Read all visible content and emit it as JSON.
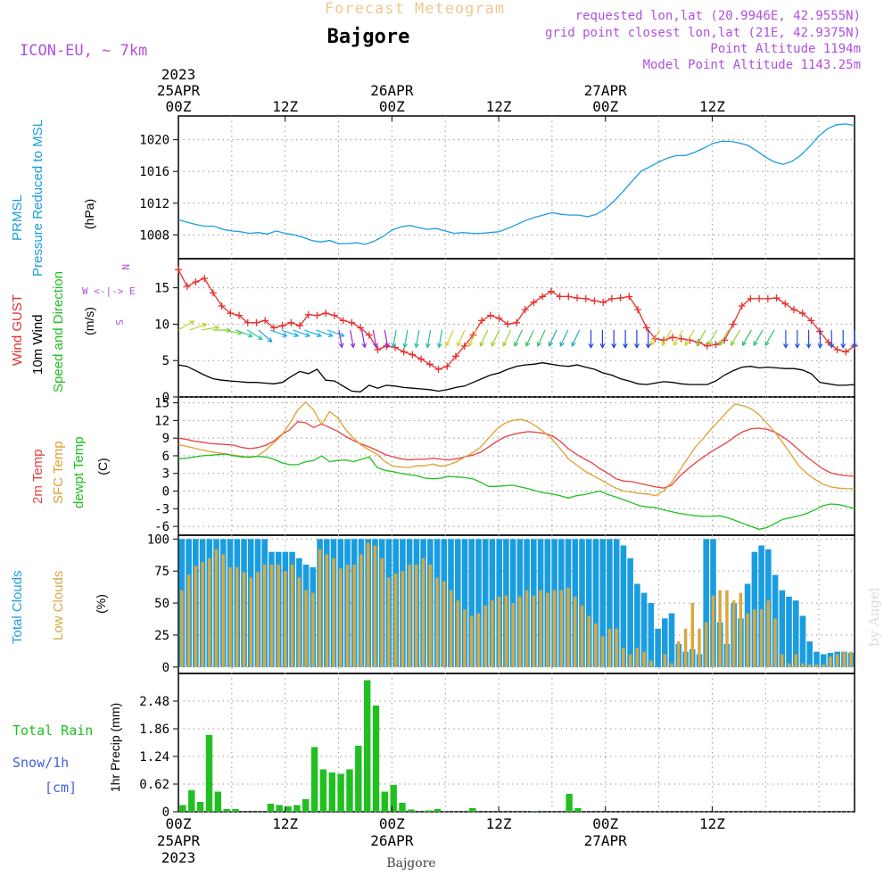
{
  "header": {
    "title": "Forecast Meteogram",
    "location": "Bajgore",
    "model": "ICON-EU, ~ 7km",
    "requested": "requested lon,lat (20.9946E, 42.9555N)",
    "grid_point": "grid point closest lon,lat (21E, 42.9375N)",
    "point_altitude": "Point Altitude 1194m",
    "model_altitude": "Model Point Altitude 1143.25m",
    "credit": "by Angel",
    "footer": "Bajgore"
  },
  "time_axis": {
    "hours_total": 76,
    "top_labels": [
      {
        "hour": 0,
        "lines": [
          "2023",
          "25APR",
          "00Z"
        ]
      },
      {
        "hour": 12,
        "lines": [
          "12Z"
        ]
      },
      {
        "hour": 24,
        "lines": [
          "26APR",
          "00Z"
        ]
      },
      {
        "hour": 36,
        "lines": [
          "12Z"
        ]
      },
      {
        "hour": 48,
        "lines": [
          "27APR",
          "00Z"
        ]
      },
      {
        "hour": 60,
        "lines": [
          "12Z"
        ]
      }
    ],
    "bottom_labels": [
      {
        "hour": 0,
        "lines": [
          "00Z",
          "25APR",
          "2023"
        ]
      },
      {
        "hour": 12,
        "lines": [
          "12Z"
        ]
      },
      {
        "hour": 24,
        "lines": [
          "00Z",
          "26APR"
        ]
      },
      {
        "hour": 36,
        "lines": [
          "12Z"
        ]
      },
      {
        "hour": 48,
        "lines": [
          "00Z",
          "27APR"
        ]
      },
      {
        "hour": 60,
        "lines": [
          "12Z"
        ]
      }
    ]
  },
  "chart_data": [
    {
      "type": "line",
      "panel": "pressure",
      "ylabel_lines": [
        "PRMSL",
        "Pressure Reduced to MSL"
      ],
      "unit": "(hPa)",
      "ylim": [
        1005,
        1023
      ],
      "yticks": [
        1008,
        1012,
        1016,
        1020
      ],
      "series": [
        {
          "name": "PRMSL",
          "color": "#1a9de0",
          "values": [
            1009.9,
            1009.6,
            1009.3,
            1009.1,
            1009.1,
            1008.7,
            1008.5,
            1008.4,
            1008.2,
            1008.3,
            1008.1,
            1008.5,
            1008.2,
            1008.0,
            1007.7,
            1007.3,
            1007.1,
            1007.3,
            1006.9,
            1006.9,
            1007.0,
            1006.8,
            1007.2,
            1007.8,
            1008.6,
            1009.0,
            1009.2,
            1008.9,
            1008.7,
            1008.8,
            1008.5,
            1008.2,
            1008.3,
            1008.2,
            1008.2,
            1008.3,
            1008.4,
            1008.8,
            1009.3,
            1009.8,
            1010.2,
            1010.5,
            1010.8,
            1010.6,
            1010.5,
            1010.5,
            1010.3,
            1010.6,
            1011.3,
            1012.3,
            1013.5,
            1014.8,
            1016.0,
            1016.6,
            1017.2,
            1017.7,
            1018.0,
            1018.0,
            1018.4,
            1018.9,
            1019.5,
            1019.8,
            1019.8,
            1019.6,
            1019.3,
            1018.6,
            1017.8,
            1017.2,
            1016.9,
            1017.3,
            1018.1,
            1019.2,
            1020.5,
            1021.4,
            1021.9,
            1022.0,
            1021.8
          ]
        }
      ]
    },
    {
      "type": "line",
      "panel": "wind",
      "ylabel_lines": [
        "Wind GUST",
        "10m Wind",
        "Speed and Direction"
      ],
      "unit": "(m/s)",
      "compass": [
        "N",
        "W <-|-> E",
        "S"
      ],
      "ylim": [
        0,
        19
      ],
      "yticks": [
        0,
        5,
        10,
        15
      ],
      "series": [
        {
          "name": "Wind GUST",
          "color": "#e83030",
          "marker": "+",
          "values": [
            17.5,
            15.2,
            15.8,
            16.3,
            14.3,
            12.5,
            11.5,
            11.2,
            10.2,
            10.2,
            10.5,
            9.5,
            9.8,
            10.2,
            9.8,
            11.3,
            11.2,
            11.5,
            11.2,
            10.5,
            10.2,
            9.5,
            8.5,
            6.5,
            7.0,
            6.8,
            6.2,
            5.8,
            5.2,
            4.5,
            3.8,
            4.2,
            5.6,
            7.0,
            8.5,
            10.5,
            11.2,
            10.8,
            10.0,
            10.2,
            12.0,
            13.0,
            13.8,
            14.5,
            13.8,
            13.8,
            13.6,
            13.5,
            13.2,
            13.0,
            13.5,
            13.6,
            13.8,
            12.0,
            9.5,
            8.0,
            7.8,
            8.2,
            8.0,
            7.8,
            7.5,
            7.0,
            7.2,
            7.8,
            10.0,
            12.5,
            13.5,
            13.5,
            13.5,
            13.6,
            12.8,
            12.0,
            11.5,
            10.5,
            9.0,
            7.5,
            6.5,
            6.2,
            7.0
          ]
        },
        {
          "name": "10m Wind",
          "color": "#000000",
          "values": [
            4.4,
            4.2,
            3.6,
            3.0,
            2.5,
            2.3,
            2.2,
            2.1,
            2.0,
            2.0,
            1.9,
            1.8,
            2.0,
            2.8,
            3.5,
            3.2,
            3.8,
            2.3,
            2.2,
            1.5,
            0.8,
            0.7,
            1.6,
            1.2,
            1.6,
            1.5,
            1.3,
            1.2,
            1.1,
            1.0,
            0.8,
            1.0,
            1.3,
            1.5,
            2.0,
            2.5,
            3.0,
            3.3,
            3.8,
            4.2,
            4.4,
            4.5,
            4.7,
            4.5,
            4.3,
            4.2,
            4.4,
            4.1,
            3.8,
            3.3,
            3.0,
            2.5,
            2.2,
            1.8,
            1.7,
            1.9,
            2.1,
            2.0,
            1.8,
            1.7,
            1.7,
            1.7,
            2.2,
            3.0,
            3.6,
            4.1,
            4.2,
            4.0,
            4.1,
            4.0,
            3.9,
            3.9,
            3.7,
            3.2,
            2.0,
            1.8,
            1.6,
            1.6,
            1.7
          ]
        }
      ]
    },
    {
      "type": "line",
      "panel": "temperature",
      "ylabel_lines": [
        "2m Temp",
        "SFC Temp",
        "dewpt Temp"
      ],
      "unit": "(C)",
      "ylim": [
        -7.5,
        16
      ],
      "yticks": [
        -6,
        -3,
        0,
        3,
        6,
        9,
        12,
        15
      ],
      "series": [
        {
          "name": "2m Temp",
          "color": "#e84040",
          "values": [
            9.0,
            8.8,
            8.5,
            8.3,
            8.1,
            8.0,
            7.9,
            7.8,
            7.4,
            7.2,
            7.4,
            7.8,
            8.5,
            9.6,
            10.4,
            11.8,
            11.6,
            10.8,
            11.4,
            10.8,
            10.2,
            9.3,
            8.6,
            8.0,
            7.5,
            6.9,
            6.2,
            5.8,
            5.5,
            5.3,
            5.4,
            5.4,
            5.6,
            5.4,
            5.3,
            5.5,
            5.8,
            6.1,
            6.6,
            7.5,
            8.4,
            9.2,
            9.6,
            9.9,
            10.1,
            10.0,
            9.8,
            9.4,
            8.5,
            7.2,
            6.3,
            5.5,
            4.8,
            3.8,
            3.0,
            2.1,
            1.7,
            1.6,
            1.3,
            1.0,
            0.7,
            0.5,
            1.0,
            2.5,
            3.7,
            4.8,
            5.8,
            6.7,
            7.5,
            8.3,
            9.3,
            10.1,
            10.6,
            10.7,
            10.5,
            10.0,
            9.2,
            8.2,
            7.0,
            5.8,
            4.8,
            3.8,
            3.1,
            2.8,
            2.6,
            2.5
          ]
        },
        {
          "name": "SFC Temp",
          "color": "#e0a030",
          "values": [
            7.9,
            7.6,
            7.3,
            7.0,
            6.7,
            6.5,
            6.3,
            6.1,
            5.9,
            5.7,
            6.0,
            7.0,
            8.2,
            9.5,
            11.5,
            13.8,
            15.1,
            13.8,
            11.3,
            13.5,
            12.5,
            10.5,
            9.0,
            7.8,
            7.0,
            6.2,
            5.0,
            4.2,
            4.1,
            4.0,
            4.3,
            4.3,
            4.6,
            4.2,
            4.5,
            5.0,
            5.8,
            6.5,
            7.5,
            9.0,
            10.5,
            11.5,
            12.0,
            12.2,
            11.8,
            11.0,
            10.0,
            8.8,
            7.2,
            5.5,
            4.5,
            3.5,
            2.7,
            2.0,
            1.2,
            0.5,
            0.0,
            -0.2,
            -0.4,
            -0.5,
            -0.8,
            0.0,
            1.5,
            3.5,
            5.5,
            7.5,
            9.0,
            10.6,
            12.0,
            13.5,
            14.8,
            14.5,
            14.0,
            13.0,
            11.5,
            10.0,
            8.2,
            6.2,
            4.3,
            3.0,
            2.0,
            1.2,
            0.7,
            0.5,
            0.4,
            0.4
          ]
        },
        {
          "name": "dewpt Temp",
          "color": "#20c020",
          "values": [
            5.5,
            5.6,
            5.8,
            6.0,
            6.1,
            6.2,
            6.3,
            6.0,
            5.8,
            5.8,
            5.9,
            5.8,
            5.4,
            4.8,
            4.5,
            4.5,
            5.0,
            5.2,
            6.0,
            5.0,
            5.2,
            5.3,
            5.0,
            5.4,
            5.8,
            4.0,
            3.5,
            3.3,
            3.0,
            2.8,
            2.6,
            2.2,
            2.1,
            2.2,
            2.5,
            2.4,
            2.3,
            2.1,
            1.5,
            0.8,
            0.8,
            0.9,
            1.0,
            0.7,
            0.4,
            0.0,
            -0.3,
            -0.5,
            -0.8,
            -1.2,
            -0.8,
            -0.6,
            -0.3,
            0.0,
            -0.6,
            -1.0,
            -1.5,
            -2.0,
            -2.5,
            -2.7,
            -2.8,
            -3.2,
            -3.5,
            -3.8,
            -4.0,
            -4.2,
            -4.3,
            -4.3,
            -4.2,
            -4.5,
            -5.0,
            -5.5,
            -6.0,
            -6.5,
            -6.2,
            -5.5,
            -4.8,
            -4.5,
            -4.2,
            -3.8,
            -3.2,
            -2.5,
            -2.2,
            -2.3,
            -2.6,
            -3.0
          ]
        }
      ]
    },
    {
      "type": "bar",
      "panel": "clouds",
      "ylabel_lines": [
        "Total Clouds",
        "Low Clouds"
      ],
      "unit": "(%)",
      "ylim": [
        -5,
        103
      ],
      "yticks": [
        0,
        25,
        50,
        75,
        100
      ],
      "series": [
        {
          "name": "Total Clouds",
          "color": "#1a9de0",
          "values": [
            100,
            100,
            100,
            100,
            100,
            100,
            100,
            100,
            100,
            100,
            100,
            100,
            100,
            90,
            90,
            90,
            90,
            85,
            80,
            78,
            100,
            100,
            100,
            100,
            100,
            100,
            100,
            100,
            100,
            100,
            100,
            100,
            100,
            100,
            100,
            100,
            100,
            100,
            100,
            100,
            100,
            100,
            100,
            100,
            100,
            100,
            100,
            100,
            100,
            100,
            100,
            100,
            100,
            100,
            100,
            100,
            100,
            100,
            100,
            100,
            100,
            100,
            100,
            100,
            95,
            85,
            65,
            58,
            50,
            30,
            38,
            42,
            18,
            12,
            14,
            10,
            100,
            100,
            35,
            18,
            50,
            38,
            65,
            90,
            95,
            92,
            72,
            60,
            55,
            52,
            40,
            20,
            12,
            10,
            11,
            12,
            12,
            11
          ]
        },
        {
          "name": "Low Clouds",
          "color": "#d8a840",
          "values": [
            60,
            72,
            79,
            82,
            85,
            92,
            88,
            78,
            78,
            74,
            70,
            74,
            80,
            80,
            80,
            75,
            80,
            70,
            60,
            58,
            92,
            88,
            85,
            77,
            80,
            80,
            88,
            97,
            95,
            85,
            70,
            73,
            75,
            80,
            80,
            85,
            80,
            70,
            67,
            60,
            52,
            45,
            40,
            42,
            48,
            52,
            55,
            56,
            50,
            55,
            60,
            56,
            60,
            58,
            60,
            60,
            62,
            55,
            48,
            40,
            34,
            24,
            30,
            30,
            15,
            10,
            15,
            12,
            5,
            0,
            10,
            3,
            20,
            30,
            50,
            30,
            35,
            56,
            60,
            60,
            52,
            58,
            42,
            45,
            45,
            52,
            38,
            10,
            3,
            10,
            3,
            2,
            2,
            2,
            8,
            10,
            12,
            12
          ]
        }
      ]
    },
    {
      "type": "bar",
      "panel": "precipitation",
      "ylabel_lines": [
        "Total  Rain",
        "Snow/1h",
        "[cm]"
      ],
      "unit": "1hr Precip (mm)",
      "ylim": [
        0,
        3.1
      ],
      "yticks": [
        0,
        0.62,
        1.24,
        1.86,
        2.48
      ],
      "ytick_labels": [
        "0",
        "0.62",
        "1.24",
        "1.86",
        "2.48"
      ],
      "series": [
        {
          "name": "Total Rain",
          "color": "#20c020",
          "values": [
            0.15,
            0.48,
            0.22,
            1.72,
            0.45,
            0.06,
            0.06,
            0,
            0,
            0,
            0.18,
            0.15,
            0.12,
            0.15,
            0.28,
            1.45,
            0.95,
            0.88,
            0.85,
            0.95,
            1.48,
            2.95,
            2.38,
            0.45,
            0.6,
            0.2,
            0.05,
            0,
            0.03,
            0.06,
            0,
            0,
            0,
            0.08,
            0,
            0,
            0,
            0,
            0,
            0,
            0.01,
            0,
            0,
            0,
            0.4,
            0.08,
            0,
            0,
            0,
            0,
            0,
            0,
            0,
            0,
            0,
            0,
            0,
            0,
            0,
            0,
            0,
            0,
            0,
            0,
            0,
            0,
            0,
            0,
            0,
            0,
            0,
            0,
            0,
            0,
            0,
            0,
            0
          ]
        }
      ]
    }
  ],
  "colors": {
    "title": "#f0c890",
    "purple": "#b050e0",
    "pressure_label": "#1a9de0",
    "gust_label": "#e83030",
    "wind_label": "#000000",
    "speed_label": "#20c020",
    "temp_label": "#e84040",
    "sfc_label": "#e0a030",
    "dew_label": "#20c020",
    "snow_label": "#4060e0"
  }
}
